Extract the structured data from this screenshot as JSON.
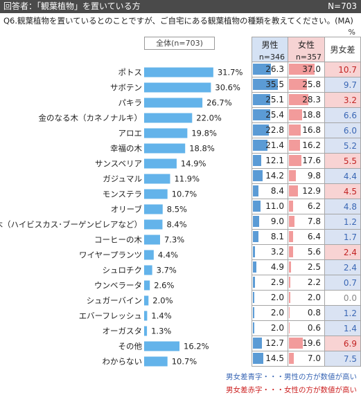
{
  "header": {
    "respondents": "回答者：「観葉植物」を置いている方",
    "n_total": "N=703"
  },
  "question": "Q6.観葉植物を置いているとのことですが、ご自宅にある観葉植物の種類を教えてください。(MA)",
  "unit": "%",
  "overall_label": "全体(n=703)",
  "columns": {
    "male": {
      "label": "男性",
      "n": "n=346"
    },
    "female": {
      "label": "女性",
      "n": "n=357"
    },
    "diff": {
      "label": "男女差"
    }
  },
  "colors": {
    "bar": "#63b3ea",
    "male_bar": "#5b9bd5",
    "female_bar": "#f29b9b",
    "diff_blue_bg": "#dae3f3",
    "diff_red_bg": "#f8d3d3",
    "diff_blue_text": "#3a67b5",
    "diff_red_text": "#c22222",
    "diff_zero_text": "#888888"
  },
  "chart_data": {
    "type": "bar",
    "orientation": "horizontal",
    "categories": [
      "ポトス",
      "サボテン",
      "パキラ",
      "金のなる木（カネノナルキ）",
      "アロエ",
      "幸福の木",
      "サンスベリア",
      "ガジュマル",
      "モンステラ",
      "オリーブ",
      "熱帯花木（ハイビスカス･ブーゲンビレアなど）",
      "コーヒーの木",
      "ワイヤープランツ",
      "シュロチク",
      "ウンベラータ",
      "シュガーバイン",
      "エバーフレッシュ",
      "オーガスタ",
      "その他",
      "わからない"
    ],
    "series": [
      {
        "name": "全体(n=703)",
        "values": [
          31.7,
          30.6,
          26.7,
          22.0,
          19.8,
          18.8,
          14.9,
          11.9,
          10.7,
          8.5,
          8.4,
          7.3,
          4.4,
          3.7,
          2.6,
          2.0,
          1.4,
          1.3,
          16.2,
          10.7
        ]
      },
      {
        "name": "男性",
        "values": [
          26.3,
          35.5,
          25.1,
          25.4,
          22.8,
          21.4,
          12.1,
          14.2,
          8.4,
          11.0,
          9.0,
          8.1,
          3.2,
          4.9,
          2.9,
          2.0,
          2.0,
          2.0,
          12.7,
          14.5
        ]
      },
      {
        "name": "女性",
        "values": [
          37.0,
          25.8,
          28.3,
          18.8,
          16.8,
          16.2,
          17.6,
          9.8,
          12.9,
          6.2,
          7.8,
          6.4,
          5.6,
          2.5,
          2.2,
          2.0,
          0.8,
          0.6,
          19.6,
          7.0
        ]
      },
      {
        "name": "男女差",
        "values": [
          10.7,
          9.7,
          3.2,
          6.6,
          6.0,
          5.2,
          5.5,
          4.4,
          4.5,
          4.8,
          1.2,
          1.7,
          2.4,
          2.4,
          0.7,
          0.0,
          1.2,
          1.4,
          6.9,
          7.5
        ]
      }
    ],
    "diff_direction": [
      "female",
      "male",
      "female",
      "male",
      "male",
      "male",
      "female",
      "male",
      "female",
      "male",
      "male",
      "male",
      "female",
      "male",
      "male",
      "none",
      "male",
      "male",
      "female",
      "male"
    ]
  },
  "legend": {
    "blue": "男女差青字・・・男性の方が数値が高い",
    "red": "男女差赤字・・・女性の方が数値が高い"
  }
}
